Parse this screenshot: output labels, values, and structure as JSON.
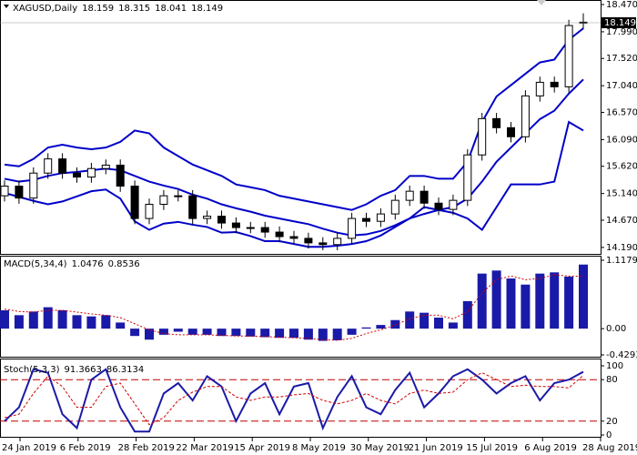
{
  "chart_data": [
    {
      "type": "candlestick",
      "title": "XAGUSD,Daily",
      "header_values": [
        18.159,
        18.315,
        18.041,
        18.149
      ],
      "last_price": 18.149,
      "open": [
        15.1,
        15.27,
        15.06,
        15.5,
        15.75,
        15.5,
        15.43,
        15.58,
        15.64,
        15.27,
        14.7,
        14.95,
        15.1,
        15.1,
        14.7,
        14.74,
        14.62,
        14.54,
        14.54,
        14.46,
        14.38,
        14.35,
        14.27,
        14.24,
        14.35,
        14.7,
        14.65,
        14.78,
        15.02,
        15.18,
        14.97,
        14.86,
        15.02,
        15.82,
        16.46,
        16.3,
        16.14,
        16.86,
        17.1,
        17.02,
        18.159
      ],
      "high": [
        15.37,
        15.37,
        15.6,
        15.85,
        15.85,
        15.6,
        15.68,
        15.74,
        15.74,
        15.37,
        15.05,
        15.2,
        15.2,
        15.2,
        14.84,
        14.84,
        14.72,
        14.64,
        14.64,
        14.56,
        14.48,
        14.45,
        14.37,
        14.45,
        14.8,
        14.8,
        14.88,
        15.12,
        15.28,
        15.28,
        15.07,
        15.12,
        15.92,
        16.56,
        16.56,
        16.4,
        16.96,
        17.2,
        17.2,
        18.2,
        18.315
      ],
      "low": [
        15.0,
        14.96,
        14.96,
        15.4,
        15.4,
        15.33,
        15.33,
        15.48,
        15.17,
        14.6,
        14.6,
        14.85,
        15.0,
        14.6,
        14.6,
        14.52,
        14.44,
        14.44,
        14.36,
        14.28,
        14.25,
        14.17,
        14.14,
        14.14,
        14.25,
        14.55,
        14.55,
        14.68,
        14.92,
        14.87,
        14.76,
        14.76,
        14.92,
        15.72,
        16.2,
        16.04,
        16.04,
        16.76,
        16.92,
        16.92,
        18.041
      ],
      "close": [
        15.27,
        15.06,
        15.5,
        15.75,
        15.5,
        15.43,
        15.58,
        15.64,
        15.27,
        14.7,
        14.95,
        15.1,
        15.1,
        14.7,
        14.74,
        14.62,
        14.54,
        14.54,
        14.46,
        14.38,
        14.35,
        14.27,
        14.24,
        14.35,
        14.7,
        14.65,
        14.78,
        15.02,
        15.18,
        14.97,
        14.86,
        15.02,
        15.82,
        16.46,
        16.3,
        16.14,
        16.86,
        17.1,
        17.02,
        18.1,
        18.149
      ],
      "bands": {
        "color": "#0000c8",
        "upper": [
          15.65,
          15.62,
          15.75,
          15.95,
          16.0,
          15.95,
          15.92,
          15.95,
          16.05,
          16.25,
          16.2,
          15.95,
          15.8,
          15.65,
          15.55,
          15.45,
          15.3,
          15.25,
          15.2,
          15.1,
          15.05,
          15.0,
          14.95,
          14.9,
          14.85,
          14.95,
          15.1,
          15.2,
          15.45,
          15.45,
          15.4,
          15.4,
          15.7,
          16.4,
          16.85,
          17.05,
          17.25,
          17.45,
          17.5,
          17.85,
          18.05
        ],
        "middle": [
          15.4,
          15.35,
          15.38,
          15.45,
          15.5,
          15.52,
          15.55,
          15.58,
          15.55,
          15.45,
          15.35,
          15.28,
          15.22,
          15.12,
          15.05,
          14.95,
          14.88,
          14.82,
          14.75,
          14.7,
          14.65,
          14.6,
          14.52,
          14.45,
          14.4,
          14.42,
          14.48,
          14.58,
          14.7,
          14.78,
          14.85,
          14.9,
          15.05,
          15.35,
          15.7,
          15.95,
          16.2,
          16.45,
          16.6,
          16.9,
          17.15
        ],
        "lower": [
          15.15,
          15.08,
          15.01,
          14.95,
          15.0,
          15.09,
          15.18,
          15.21,
          15.05,
          14.65,
          14.5,
          14.61,
          14.64,
          14.59,
          14.55,
          14.45,
          14.46,
          14.39,
          14.3,
          14.3,
          14.25,
          14.2,
          14.2,
          14.22,
          14.25,
          14.3,
          14.4,
          14.55,
          14.7,
          14.9,
          14.85,
          14.8,
          14.7,
          14.5,
          14.9,
          15.3,
          15.3,
          15.3,
          15.35,
          16.4,
          16.25
        ]
      },
      "bull_color": "#ffffff",
      "bear_color": "#000000",
      "ylim": [
        14.06,
        18.55
      ],
      "yticks": [
        {
          "value": 18.47,
          "label": "18.470"
        },
        {
          "value": 17.99,
          "label": "17.990"
        },
        {
          "value": 17.52,
          "label": "17.520"
        },
        {
          "value": 17.04,
          "label": "17.040"
        },
        {
          "value": 16.57,
          "label": "16.570"
        },
        {
          "value": 16.09,
          "label": "16.090"
        },
        {
          "value": 15.62,
          "label": "15.620"
        },
        {
          "value": 15.14,
          "label": "15.140"
        },
        {
          "value": 14.67,
          "label": "14.670"
        },
        {
          "value": 14.19,
          "label": "14.190"
        }
      ]
    },
    {
      "type": "macd",
      "title": "MACD(5,34,4)",
      "header_values": [
        1.0476,
        0.8536
      ],
      "histogram": [
        0.3,
        0.22,
        0.28,
        0.35,
        0.3,
        0.22,
        0.2,
        0.22,
        0.1,
        -0.12,
        -0.18,
        -0.1,
        -0.05,
        -0.1,
        -0.1,
        -0.12,
        -0.12,
        -0.13,
        -0.14,
        -0.15,
        -0.15,
        -0.18,
        -0.2,
        -0.19,
        -0.1,
        0.02,
        0.06,
        0.14,
        0.28,
        0.26,
        0.18,
        0.1,
        0.45,
        0.9,
        0.95,
        0.82,
        0.72,
        0.9,
        0.92,
        0.85,
        1.0476
      ],
      "signal": [
        0.32,
        0.28,
        0.27,
        0.3,
        0.3,
        0.27,
        0.24,
        0.22,
        0.18,
        0.08,
        -0.02,
        -0.08,
        -0.1,
        -0.1,
        -0.1,
        -0.11,
        -0.12,
        -0.12,
        -0.13,
        -0.14,
        -0.15,
        -0.16,
        -0.18,
        -0.19,
        -0.16,
        -0.08,
        -0.02,
        0.06,
        0.16,
        0.22,
        0.22,
        0.16,
        0.28,
        0.58,
        0.8,
        0.86,
        0.8,
        0.82,
        0.88,
        0.86,
        0.8536
      ],
      "hist_color": "#1a1aa8",
      "signal_color": "#d00000",
      "ylim": [
        -0.4293,
        1.1179
      ],
      "yticks": [
        1.1179,
        {
          "value": 0,
          "label": "0.00"
        },
        -0.4293
      ]
    },
    {
      "type": "stochastic",
      "title": "Stoch(5,3,3)",
      "header_values": [
        91.3663,
        86.3134
      ],
      "main": [
        20,
        40,
        95,
        90,
        30,
        10,
        80,
        95,
        40,
        5,
        5,
        60,
        75,
        50,
        85,
        70,
        20,
        60,
        75,
        30,
        70,
        75,
        10,
        55,
        85,
        40,
        30,
        65,
        90,
        40,
        60,
        85,
        95,
        80,
        60,
        75,
        85,
        50,
        75,
        80,
        91.3663
      ],
      "signal": [
        25,
        30,
        60,
        85,
        70,
        40,
        40,
        70,
        75,
        45,
        15,
        25,
        50,
        62,
        70,
        70,
        55,
        50,
        55,
        55,
        58,
        60,
        50,
        45,
        50,
        60,
        50,
        45,
        60,
        65,
        60,
        62,
        80,
        90,
        80,
        70,
        72,
        70,
        70,
        68,
        86.3134
      ],
      "main_color": "#1a1aa8",
      "signal_color": "#d00000",
      "levels": [
        80,
        20
      ],
      "ylim": [
        0,
        100
      ],
      "yticks": [
        100,
        80,
        20,
        0
      ]
    }
  ],
  "x_axis_labels": [
    "24 Jan 2019",
    "6 Feb 2019",
    "28 Feb 2019",
    "22 Mar 2019",
    "15 Apr 2019",
    "8 May 2019",
    "30 May 2019",
    "21 Jun 2019",
    "15 Jul 2019",
    "6 Aug 2019",
    "28 Aug 2019"
  ]
}
